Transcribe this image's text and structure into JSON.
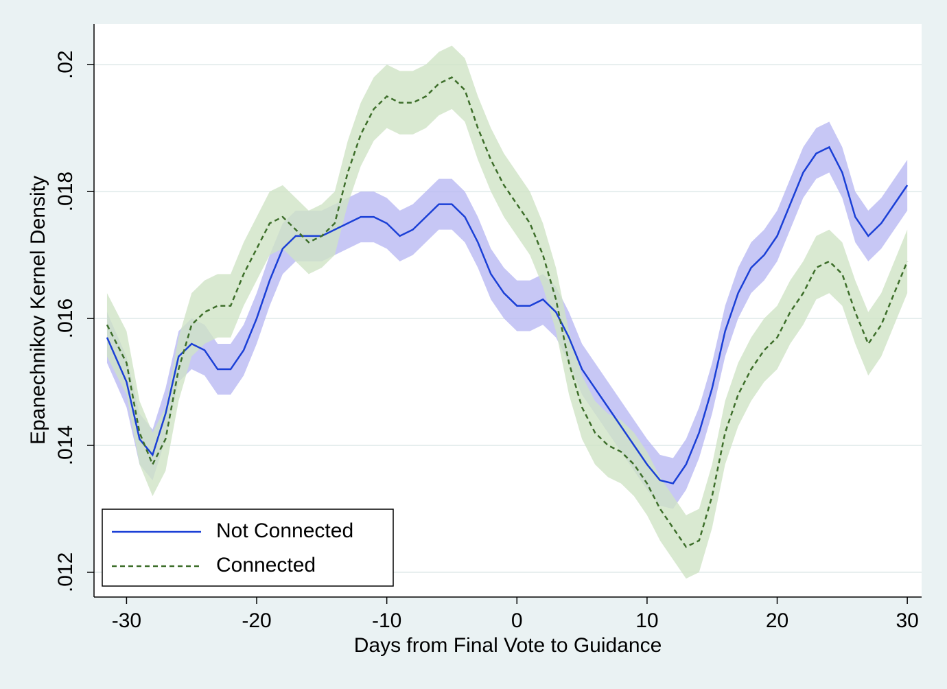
{
  "chart_data": {
    "type": "line",
    "x_label": "Days from Final Vote to Guidance",
    "y_label": "Epanechnikov Kernel Density",
    "x": [
      -31.5,
      -30,
      -29,
      -28,
      -27,
      -26,
      -25,
      -24,
      -23,
      -22,
      -21,
      -20,
      -19,
      -18,
      -17,
      -16,
      -15,
      -14,
      -13,
      -12,
      -11,
      -10,
      -9,
      -8,
      -7,
      -6,
      -5,
      -4,
      -3,
      -2,
      -1,
      0,
      1,
      2,
      3,
      4,
      5,
      6,
      7,
      8,
      9,
      10,
      11,
      12,
      13,
      14,
      15,
      16,
      17,
      18,
      19,
      20,
      21,
      22,
      23,
      24,
      25,
      26,
      27,
      28,
      29,
      30
    ],
    "series": [
      {
        "name": "Not Connected",
        "color": "#1a3fd6",
        "band_color": "#b9b9f2",
        "dash": false,
        "values": [
          0.0157,
          0.015,
          0.0141,
          0.01385,
          0.0145,
          0.0154,
          0.0156,
          0.0155,
          0.0152,
          0.0152,
          0.0155,
          0.016,
          0.0166,
          0.0171,
          0.0173,
          0.0173,
          0.0173,
          0.0174,
          0.0175,
          0.0176,
          0.0176,
          0.0175,
          0.0173,
          0.0174,
          0.0176,
          0.0178,
          0.0178,
          0.0176,
          0.0172,
          0.0167,
          0.0164,
          0.0162,
          0.0162,
          0.0163,
          0.0161,
          0.0157,
          0.0152,
          0.0149,
          0.0146,
          0.0143,
          0.014,
          0.0137,
          0.01345,
          0.0134,
          0.0137,
          0.0142,
          0.0149,
          0.0158,
          0.0164,
          0.0168,
          0.017,
          0.0173,
          0.0178,
          0.0183,
          0.0186,
          0.0187,
          0.0183,
          0.0176,
          0.0173,
          0.0175,
          0.0178,
          0.0181
        ],
        "lower": [
          0.0153,
          0.0146,
          0.0137,
          0.01345,
          0.0141,
          0.015,
          0.0152,
          0.0151,
          0.0148,
          0.0148,
          0.0151,
          0.0156,
          0.0162,
          0.0167,
          0.0169,
          0.0169,
          0.0169,
          0.017,
          0.0171,
          0.0172,
          0.0172,
          0.0171,
          0.0169,
          0.017,
          0.0172,
          0.0174,
          0.0174,
          0.0172,
          0.0168,
          0.0163,
          0.016,
          0.0158,
          0.0158,
          0.0159,
          0.0157,
          0.0153,
          0.0148,
          0.0145,
          0.0142,
          0.0139,
          0.0136,
          0.0133,
          0.01305,
          0.013,
          0.0133,
          0.0138,
          0.0145,
          0.0154,
          0.016,
          0.0164,
          0.0166,
          0.0169,
          0.0174,
          0.0179,
          0.0182,
          0.0183,
          0.0179,
          0.0172,
          0.0169,
          0.0171,
          0.0174,
          0.0177
        ],
        "upper": [
          0.0161,
          0.0154,
          0.0145,
          0.01425,
          0.0149,
          0.0158,
          0.016,
          0.0159,
          0.0156,
          0.0156,
          0.0159,
          0.0164,
          0.017,
          0.0175,
          0.0177,
          0.0177,
          0.0177,
          0.0178,
          0.0179,
          0.018,
          0.018,
          0.0179,
          0.0177,
          0.0178,
          0.018,
          0.0182,
          0.0182,
          0.018,
          0.0176,
          0.0171,
          0.0168,
          0.0166,
          0.0166,
          0.0167,
          0.0165,
          0.0161,
          0.0156,
          0.0153,
          0.015,
          0.0147,
          0.0144,
          0.0141,
          0.01385,
          0.0138,
          0.0141,
          0.0146,
          0.0153,
          0.0162,
          0.0168,
          0.0172,
          0.0174,
          0.0177,
          0.0182,
          0.0187,
          0.019,
          0.0191,
          0.0187,
          0.018,
          0.0177,
          0.0179,
          0.0182,
          0.0185
        ]
      },
      {
        "name": "Connected",
        "color": "#3d6e2a",
        "band_color": "#cfe3c6",
        "dash": true,
        "values": [
          0.0159,
          0.0153,
          0.0142,
          0.0137,
          0.0141,
          0.0152,
          0.0159,
          0.0161,
          0.0162,
          0.0162,
          0.0167,
          0.0171,
          0.0175,
          0.0176,
          0.0174,
          0.0172,
          0.0173,
          0.0175,
          0.0183,
          0.0189,
          0.0193,
          0.0195,
          0.0194,
          0.0194,
          0.0195,
          0.0197,
          0.0198,
          0.0196,
          0.019,
          0.0185,
          0.0181,
          0.0178,
          0.0175,
          0.017,
          0.0163,
          0.0153,
          0.0146,
          0.0142,
          0.014,
          0.0139,
          0.0137,
          0.0134,
          0.013,
          0.0127,
          0.0124,
          0.0125,
          0.0132,
          0.0142,
          0.0148,
          0.0152,
          0.0155,
          0.0157,
          0.0161,
          0.0164,
          0.0168,
          0.0169,
          0.0167,
          0.0161,
          0.0156,
          0.0159,
          0.0164,
          0.0169
        ],
        "lower": [
          0.0154,
          0.0148,
          0.0137,
          0.0132,
          0.0136,
          0.0147,
          0.0154,
          0.0156,
          0.0157,
          0.0157,
          0.0162,
          0.0166,
          0.017,
          0.0171,
          0.0169,
          0.0167,
          0.0168,
          0.017,
          0.0178,
          0.0184,
          0.0188,
          0.019,
          0.0189,
          0.0189,
          0.019,
          0.0192,
          0.0193,
          0.0191,
          0.0185,
          0.018,
          0.0176,
          0.0173,
          0.017,
          0.0165,
          0.0158,
          0.0148,
          0.0141,
          0.0137,
          0.0135,
          0.0134,
          0.0132,
          0.0129,
          0.0125,
          0.0122,
          0.0119,
          0.012,
          0.0127,
          0.0137,
          0.0143,
          0.0147,
          0.015,
          0.0152,
          0.0156,
          0.0159,
          0.0163,
          0.0164,
          0.0162,
          0.0156,
          0.0151,
          0.0154,
          0.0159,
          0.0164
        ],
        "upper": [
          0.0164,
          0.0158,
          0.0147,
          0.0142,
          0.0146,
          0.0157,
          0.0164,
          0.0166,
          0.0167,
          0.0167,
          0.0172,
          0.0176,
          0.018,
          0.0181,
          0.0179,
          0.0177,
          0.0178,
          0.018,
          0.0188,
          0.0194,
          0.0198,
          0.02,
          0.0199,
          0.0199,
          0.02,
          0.0202,
          0.0203,
          0.0201,
          0.0195,
          0.019,
          0.0186,
          0.0183,
          0.018,
          0.0175,
          0.0168,
          0.0158,
          0.0151,
          0.0147,
          0.0145,
          0.0144,
          0.0142,
          0.0139,
          0.0135,
          0.0132,
          0.0129,
          0.013,
          0.0137,
          0.0147,
          0.0153,
          0.0157,
          0.016,
          0.0162,
          0.0166,
          0.0169,
          0.0173,
          0.0174,
          0.0172,
          0.0166,
          0.0161,
          0.0164,
          0.0169,
          0.0174
        ]
      }
    ],
    "xlim": [
      -32.5,
      31.1
    ],
    "ylim": [
      0.01161,
      0.02064
    ],
    "xticks": [
      -30,
      -20,
      -10,
      0,
      10,
      20,
      30
    ],
    "yticks": [
      {
        "value": 0.012,
        "label": ".012"
      },
      {
        "value": 0.014,
        "label": ".014"
      },
      {
        "value": 0.016,
        "label": ".016"
      },
      {
        "value": 0.018,
        "label": ".018"
      },
      {
        "value": 0.02,
        "label": ".02"
      }
    ],
    "grid": true,
    "legend": "lower-left"
  }
}
